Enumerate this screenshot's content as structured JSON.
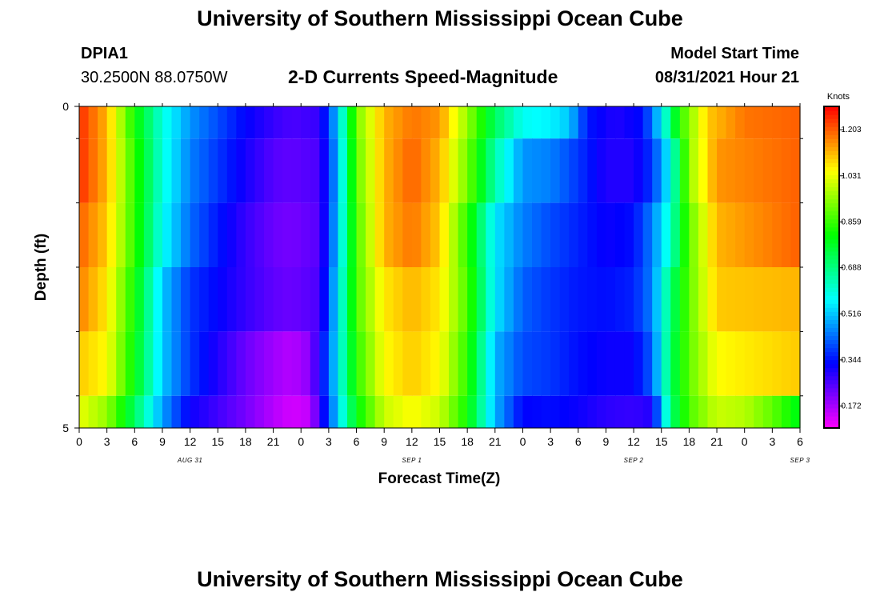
{
  "header": {
    "title": "University of Southern Mississippi Ocean Cube",
    "station": "DPIA1",
    "coords": "30.2500N  88.0750W",
    "subtitle": "2-D Currents Speed-Magnitude",
    "model_start_label": "Model Start Time",
    "model_start_value": "08/31/2021 Hour 21"
  },
  "footer": {
    "title": "University of Southern Mississippi Ocean Cube"
  },
  "chart_data": {
    "type": "heatmap",
    "title": "2-D Currents Speed-Magnitude",
    "xlabel": "Forecast Time(Z)",
    "ylabel": "Depth (ft)",
    "x_unit": "hours",
    "x_tick_labels": [
      "0",
      "3",
      "6",
      "9",
      "12",
      "15",
      "18",
      "21",
      "0",
      "3",
      "6",
      "9",
      "12",
      "15",
      "18",
      "21",
      "0",
      "3",
      "6",
      "9",
      "12",
      "15",
      "18",
      "21",
      "0",
      "3",
      "6"
    ],
    "date_labels": [
      {
        "label": "AUG 31",
        "hour": 12
      },
      {
        "label": "SEP 1",
        "hour": 36
      },
      {
        "label": "SEP 2",
        "hour": 60
      },
      {
        "label": "SEP 3",
        "hour": 78
      }
    ],
    "xlim": [
      0,
      78
    ],
    "ylim": [
      0,
      5
    ],
    "y_tick_labels": [
      "0",
      "5"
    ],
    "depth_bin_bounds": [
      0.5,
      1.5,
      2.5,
      3.5,
      4.5
    ],
    "colorbar": {
      "unit": "Knots",
      "ticks": [
        1.203,
        1.031,
        0.859,
        0.688,
        0.516,
        0.344,
        0.172
      ],
      "range": [
        0.09,
        1.29
      ]
    },
    "speed_profiles_by_depth_band": [
      {
        "depth_range": [
          0,
          0.5
        ],
        "points": [
          [
            0,
            1.25
          ],
          [
            3,
            1.12
          ],
          [
            6,
            0.82
          ],
          [
            9,
            0.6
          ],
          [
            12,
            0.47
          ],
          [
            15,
            0.4
          ],
          [
            18,
            0.33
          ],
          [
            21,
            0.28
          ],
          [
            23,
            0.26
          ],
          [
            26,
            0.28
          ],
          [
            28,
            0.52
          ],
          [
            30,
            0.92
          ],
          [
            33,
            1.12
          ],
          [
            36,
            1.18
          ],
          [
            39,
            1.15
          ],
          [
            42,
            0.95
          ],
          [
            45,
            0.72
          ],
          [
            48,
            0.58
          ],
          [
            51,
            0.56
          ],
          [
            53,
            0.52
          ],
          [
            55,
            0.35
          ],
          [
            58,
            0.3
          ],
          [
            61,
            0.34
          ],
          [
            63,
            0.55
          ],
          [
            65,
            0.85
          ],
          [
            68,
            1.1
          ],
          [
            72,
            1.18
          ],
          [
            78,
            1.2
          ]
        ]
      },
      {
        "depth_range": [
          0.5,
          1.5
        ],
        "points": [
          [
            0,
            1.25
          ],
          [
            3,
            1.12
          ],
          [
            6,
            0.85
          ],
          [
            9,
            0.6
          ],
          [
            12,
            0.45
          ],
          [
            15,
            0.38
          ],
          [
            18,
            0.31
          ],
          [
            21,
            0.25
          ],
          [
            23,
            0.24
          ],
          [
            26,
            0.26
          ],
          [
            28,
            0.5
          ],
          [
            30,
            0.9
          ],
          [
            33,
            1.12
          ],
          [
            36,
            1.2
          ],
          [
            39,
            1.12
          ],
          [
            42,
            0.92
          ],
          [
            45,
            0.65
          ],
          [
            48,
            0.47
          ],
          [
            51,
            0.45
          ],
          [
            54,
            0.38
          ],
          [
            57,
            0.3
          ],
          [
            60,
            0.3
          ],
          [
            62,
            0.38
          ],
          [
            64,
            0.58
          ],
          [
            66,
            0.95
          ],
          [
            69,
            1.15
          ],
          [
            78,
            1.2
          ]
        ]
      },
      {
        "depth_range": [
          1.5,
          2.5
        ],
        "points": [
          [
            0,
            1.2
          ],
          [
            3,
            1.1
          ],
          [
            6,
            0.85
          ],
          [
            9,
            0.58
          ],
          [
            12,
            0.43
          ],
          [
            15,
            0.35
          ],
          [
            18,
            0.28
          ],
          [
            21,
            0.23
          ],
          [
            23,
            0.22
          ],
          [
            26,
            0.25
          ],
          [
            28,
            0.52
          ],
          [
            30,
            0.88
          ],
          [
            33,
            1.12
          ],
          [
            36,
            1.18
          ],
          [
            39,
            1.1
          ],
          [
            42,
            0.85
          ],
          [
            45,
            0.55
          ],
          [
            48,
            0.45
          ],
          [
            51,
            0.4
          ],
          [
            54,
            0.36
          ],
          [
            57,
            0.32
          ],
          [
            60,
            0.34
          ],
          [
            62,
            0.45
          ],
          [
            64,
            0.62
          ],
          [
            66,
            0.9
          ],
          [
            69,
            1.12
          ],
          [
            78,
            1.2
          ]
        ]
      },
      {
        "depth_range": [
          2.5,
          3.5
        ],
        "points": [
          [
            0,
            1.17
          ],
          [
            3,
            1.07
          ],
          [
            6,
            0.82
          ],
          [
            9,
            0.52
          ],
          [
            12,
            0.38
          ],
          [
            15,
            0.33
          ],
          [
            18,
            0.28
          ],
          [
            21,
            0.24
          ],
          [
            23,
            0.23
          ],
          [
            26,
            0.26
          ],
          [
            28,
            0.55
          ],
          [
            30,
            0.88
          ],
          [
            33,
            1.07
          ],
          [
            36,
            1.12
          ],
          [
            39,
            1.07
          ],
          [
            42,
            0.88
          ],
          [
            45,
            0.55
          ],
          [
            48,
            0.42
          ],
          [
            51,
            0.38
          ],
          [
            54,
            0.35
          ],
          [
            57,
            0.34
          ],
          [
            60,
            0.36
          ],
          [
            62,
            0.45
          ],
          [
            64,
            0.7
          ],
          [
            66,
            0.9
          ],
          [
            69,
            1.1
          ],
          [
            78,
            1.12
          ]
        ]
      },
      {
        "depth_range": [
          3.5,
          4.5
        ],
        "points": [
          [
            0,
            1.1
          ],
          [
            3,
            1.05
          ],
          [
            6,
            0.8
          ],
          [
            9,
            0.52
          ],
          [
            12,
            0.38
          ],
          [
            15,
            0.3
          ],
          [
            18,
            0.23
          ],
          [
            21,
            0.18
          ],
          [
            23,
            0.16
          ],
          [
            25,
            0.2
          ],
          [
            27,
            0.42
          ],
          [
            30,
            0.85
          ],
          [
            33,
            1.05
          ],
          [
            36,
            1.1
          ],
          [
            39,
            1.05
          ],
          [
            42,
            0.85
          ],
          [
            45,
            0.5
          ],
          [
            48,
            0.4
          ],
          [
            51,
            0.38
          ],
          [
            54,
            0.34
          ],
          [
            57,
            0.32
          ],
          [
            60,
            0.32
          ],
          [
            62,
            0.42
          ],
          [
            64,
            0.72
          ],
          [
            66,
            0.9
          ],
          [
            69,
            1.05
          ],
          [
            78,
            1.1
          ]
        ]
      },
      {
        "depth_range": [
          4.5,
          5
        ],
        "points": [
          [
            0,
            1.03
          ],
          [
            3,
            0.95
          ],
          [
            6,
            0.72
          ],
          [
            9,
            0.48
          ],
          [
            12,
            0.32
          ],
          [
            15,
            0.27
          ],
          [
            18,
            0.22
          ],
          [
            21,
            0.16
          ],
          [
            23,
            0.13
          ],
          [
            25,
            0.15
          ],
          [
            27,
            0.4
          ],
          [
            30,
            0.8
          ],
          [
            33,
            1.0
          ],
          [
            36,
            1.05
          ],
          [
            39,
            1.0
          ],
          [
            42,
            0.82
          ],
          [
            45,
            0.5
          ],
          [
            48,
            0.33
          ],
          [
            51,
            0.34
          ],
          [
            54,
            0.32
          ],
          [
            57,
            0.29
          ],
          [
            60,
            0.28
          ],
          [
            62,
            0.3
          ],
          [
            64,
            0.7
          ],
          [
            66,
            0.88
          ],
          [
            69,
            1.0
          ],
          [
            72,
            0.98
          ],
          [
            75,
            0.9
          ],
          [
            78,
            0.78
          ]
        ]
      }
    ]
  }
}
